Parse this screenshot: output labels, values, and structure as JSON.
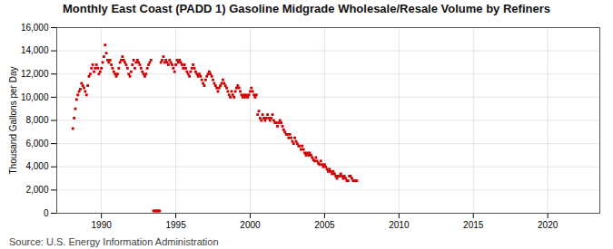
{
  "chart_data": {
    "type": "scatter",
    "title": "Monthly East Coast (PADD 1) Gasoline Midgrade Wholesale/Resale Volume by Refiners",
    "ylabel": "Thousand Gallons per Day",
    "source": "Source: U.S. Energy Information Administration",
    "color": "#cc0000",
    "marker": "square",
    "grid": true,
    "xlim": [
      1987.0,
      2023.5
    ],
    "xticks": [
      1990,
      1995,
      2000,
      2005,
      2010,
      2015,
      2020
    ],
    "ylim": [
      0,
      16000
    ],
    "yticks": [
      0,
      {
        "value": 2000,
        "label": "2,000"
      },
      {
        "value": 4000,
        "label": "4,000"
      },
      {
        "value": 6000,
        "label": "6,000"
      },
      {
        "value": 8000,
        "label": "8,000"
      },
      {
        "value": 10000,
        "label": "10,000"
      },
      {
        "value": 12000,
        "label": "12,000"
      },
      {
        "value": 14000,
        "label": "14,000"
      },
      {
        "value": 16000,
        "label": "16,000"
      }
    ],
    "x": [
      1988.083,
      1988.167,
      1988.25,
      1988.333,
      1988.417,
      1988.5,
      1988.583,
      1988.667,
      1988.75,
      1988.833,
      1988.917,
      1989.0,
      1989.083,
      1989.167,
      1989.25,
      1989.333,
      1989.417,
      1989.5,
      1989.583,
      1989.667,
      1989.75,
      1989.833,
      1989.917,
      1990.0,
      1990.083,
      1990.167,
      1990.25,
      1990.333,
      1990.417,
      1990.5,
      1990.583,
      1990.667,
      1990.75,
      1990.833,
      1990.917,
      1991.0,
      1991.083,
      1991.167,
      1991.25,
      1991.333,
      1991.417,
      1991.5,
      1991.583,
      1991.667,
      1991.75,
      1991.833,
      1991.917,
      1992.0,
      1992.083,
      1992.167,
      1992.25,
      1992.333,
      1992.417,
      1992.5,
      1992.583,
      1992.667,
      1992.75,
      1992.833,
      1992.917,
      1993.0,
      1993.083,
      1993.167,
      1993.25,
      1993.333,
      1993.5,
      1993.583,
      1993.667,
      1993.75,
      1993.833,
      1993.917,
      1994.0,
      1994.083,
      1994.167,
      1994.25,
      1994.333,
      1994.417,
      1994.5,
      1994.583,
      1994.667,
      1994.75,
      1994.833,
      1994.917,
      1995.0,
      1995.083,
      1995.167,
      1995.25,
      1995.333,
      1995.417,
      1995.5,
      1995.583,
      1995.667,
      1995.75,
      1995.833,
      1995.917,
      1996.0,
      1996.083,
      1996.167,
      1996.25,
      1996.333,
      1996.417,
      1996.5,
      1996.583,
      1996.667,
      1996.75,
      1996.833,
      1996.917,
      1997.0,
      1997.083,
      1997.167,
      1997.25,
      1997.333,
      1997.417,
      1997.5,
      1997.583,
      1997.667,
      1997.75,
      1997.833,
      1997.917,
      1998.0,
      1998.083,
      1998.167,
      1998.25,
      1998.333,
      1998.417,
      1998.5,
      1998.583,
      1998.667,
      1998.75,
      1998.833,
      1998.917,
      1999.0,
      1999.083,
      1999.167,
      1999.25,
      1999.333,
      1999.417,
      1999.5,
      1999.583,
      1999.667,
      1999.75,
      1999.833,
      1999.917,
      2000.0,
      2000.083,
      2000.167,
      2000.25,
      2000.333,
      2000.417,
      2000.5,
      2000.583,
      2000.667,
      2000.75,
      2000.833,
      2000.917,
      2001.0,
      2001.083,
      2001.167,
      2001.25,
      2001.333,
      2001.417,
      2001.5,
      2001.583,
      2001.667,
      2001.75,
      2001.833,
      2001.917,
      2002.0,
      2002.083,
      2002.167,
      2002.25,
      2002.333,
      2002.417,
      2002.5,
      2002.583,
      2002.667,
      2002.75,
      2002.833,
      2002.917,
      2003.0,
      2003.083,
      2003.167,
      2003.25,
      2003.333,
      2003.417,
      2003.5,
      2003.583,
      2003.667,
      2003.75,
      2003.833,
      2003.917,
      2004.0,
      2004.083,
      2004.167,
      2004.25,
      2004.333,
      2004.417,
      2004.5,
      2004.583,
      2004.667,
      2004.75,
      2004.833,
      2004.917,
      2005.0,
      2005.083,
      2005.167,
      2005.25,
      2005.333,
      2005.417,
      2005.5,
      2005.583,
      2005.667,
      2005.75,
      2005.833,
      2005.917,
      2006.0,
      2006.083,
      2006.167,
      2006.25,
      2006.333,
      2006.417,
      2006.5,
      2006.583,
      2006.667,
      2006.75,
      2006.833,
      2006.917,
      2007.0,
      2007.083,
      2007.167
    ],
    "values": [
      7300,
      8200,
      9000,
      9800,
      10200,
      10500,
      10700,
      11200,
      11000,
      10800,
      10500,
      10200,
      11000,
      11800,
      12000,
      12500,
      12800,
      12200,
      12500,
      12800,
      12500,
      12000,
      12200,
      12500,
      13000,
      13500,
      14500,
      13800,
      13200,
      13000,
      13200,
      12800,
      12500,
      12200,
      12000,
      11800,
      12000,
      12500,
      13000,
      13200,
      13500,
      13200,
      13000,
      12800,
      12500,
      12000,
      11800,
      12200,
      12800,
      13200,
      12500,
      13000,
      13200,
      13000,
      12800,
      12500,
      12200,
      12000,
      11800,
      12000,
      12500,
      12800,
      13000,
      13200,
      200,
      200,
      200,
      200,
      200,
      200,
      13000,
      13200,
      13500,
      13000,
      13200,
      13000,
      12800,
      13200,
      13000,
      12800,
      12500,
      12200,
      12800,
      13200,
      13000,
      13200,
      13000,
      12800,
      12500,
      12800,
      12500,
      12200,
      12000,
      11800,
      12200,
      12500,
      12800,
      12500,
      12200,
      12000,
      11800,
      12000,
      11800,
      11500,
      11200,
      11000,
      11500,
      11800,
      12000,
      12200,
      12000,
      11800,
      11500,
      11200,
      11000,
      10800,
      10500,
      10800,
      11000,
      11200,
      11500,
      11200,
      11000,
      10800,
      10500,
      10200,
      10000,
      10500,
      10200,
      10000,
      10500,
      10800,
      11000,
      10800,
      10500,
      10200,
      10000,
      10200,
      10000,
      10200,
      10000,
      10200,
      10500,
      10800,
      10500,
      10200,
      10000,
      10200,
      8500,
      8800,
      8200,
      8000,
      8500,
      8200,
      8000,
      8200,
      8500,
      8200,
      8000,
      8200,
      8500,
      8000,
      7800,
      7800,
      7500,
      7800,
      8000,
      7800,
      7500,
      7200,
      7000,
      6800,
      6800,
      6500,
      6800,
      6500,
      6200,
      6000,
      6500,
      6200,
      6000,
      5800,
      5800,
      5500,
      5800,
      5500,
      5200,
      5000,
      5200,
      5000,
      5200,
      5000,
      4800,
      4600,
      4500,
      4800,
      4500,
      4300,
      4200,
      4500,
      4200,
      4000,
      4200,
      4000,
      3800,
      3600,
      3800,
      3600,
      3400,
      3600,
      3400,
      3200,
      3000,
      3200,
      3200,
      3400,
      3200,
      3000,
      3200,
      3000,
      2800,
      2800,
      3200,
      3200,
      3000,
      2800,
      2800,
      2800,
      2800
    ]
  }
}
